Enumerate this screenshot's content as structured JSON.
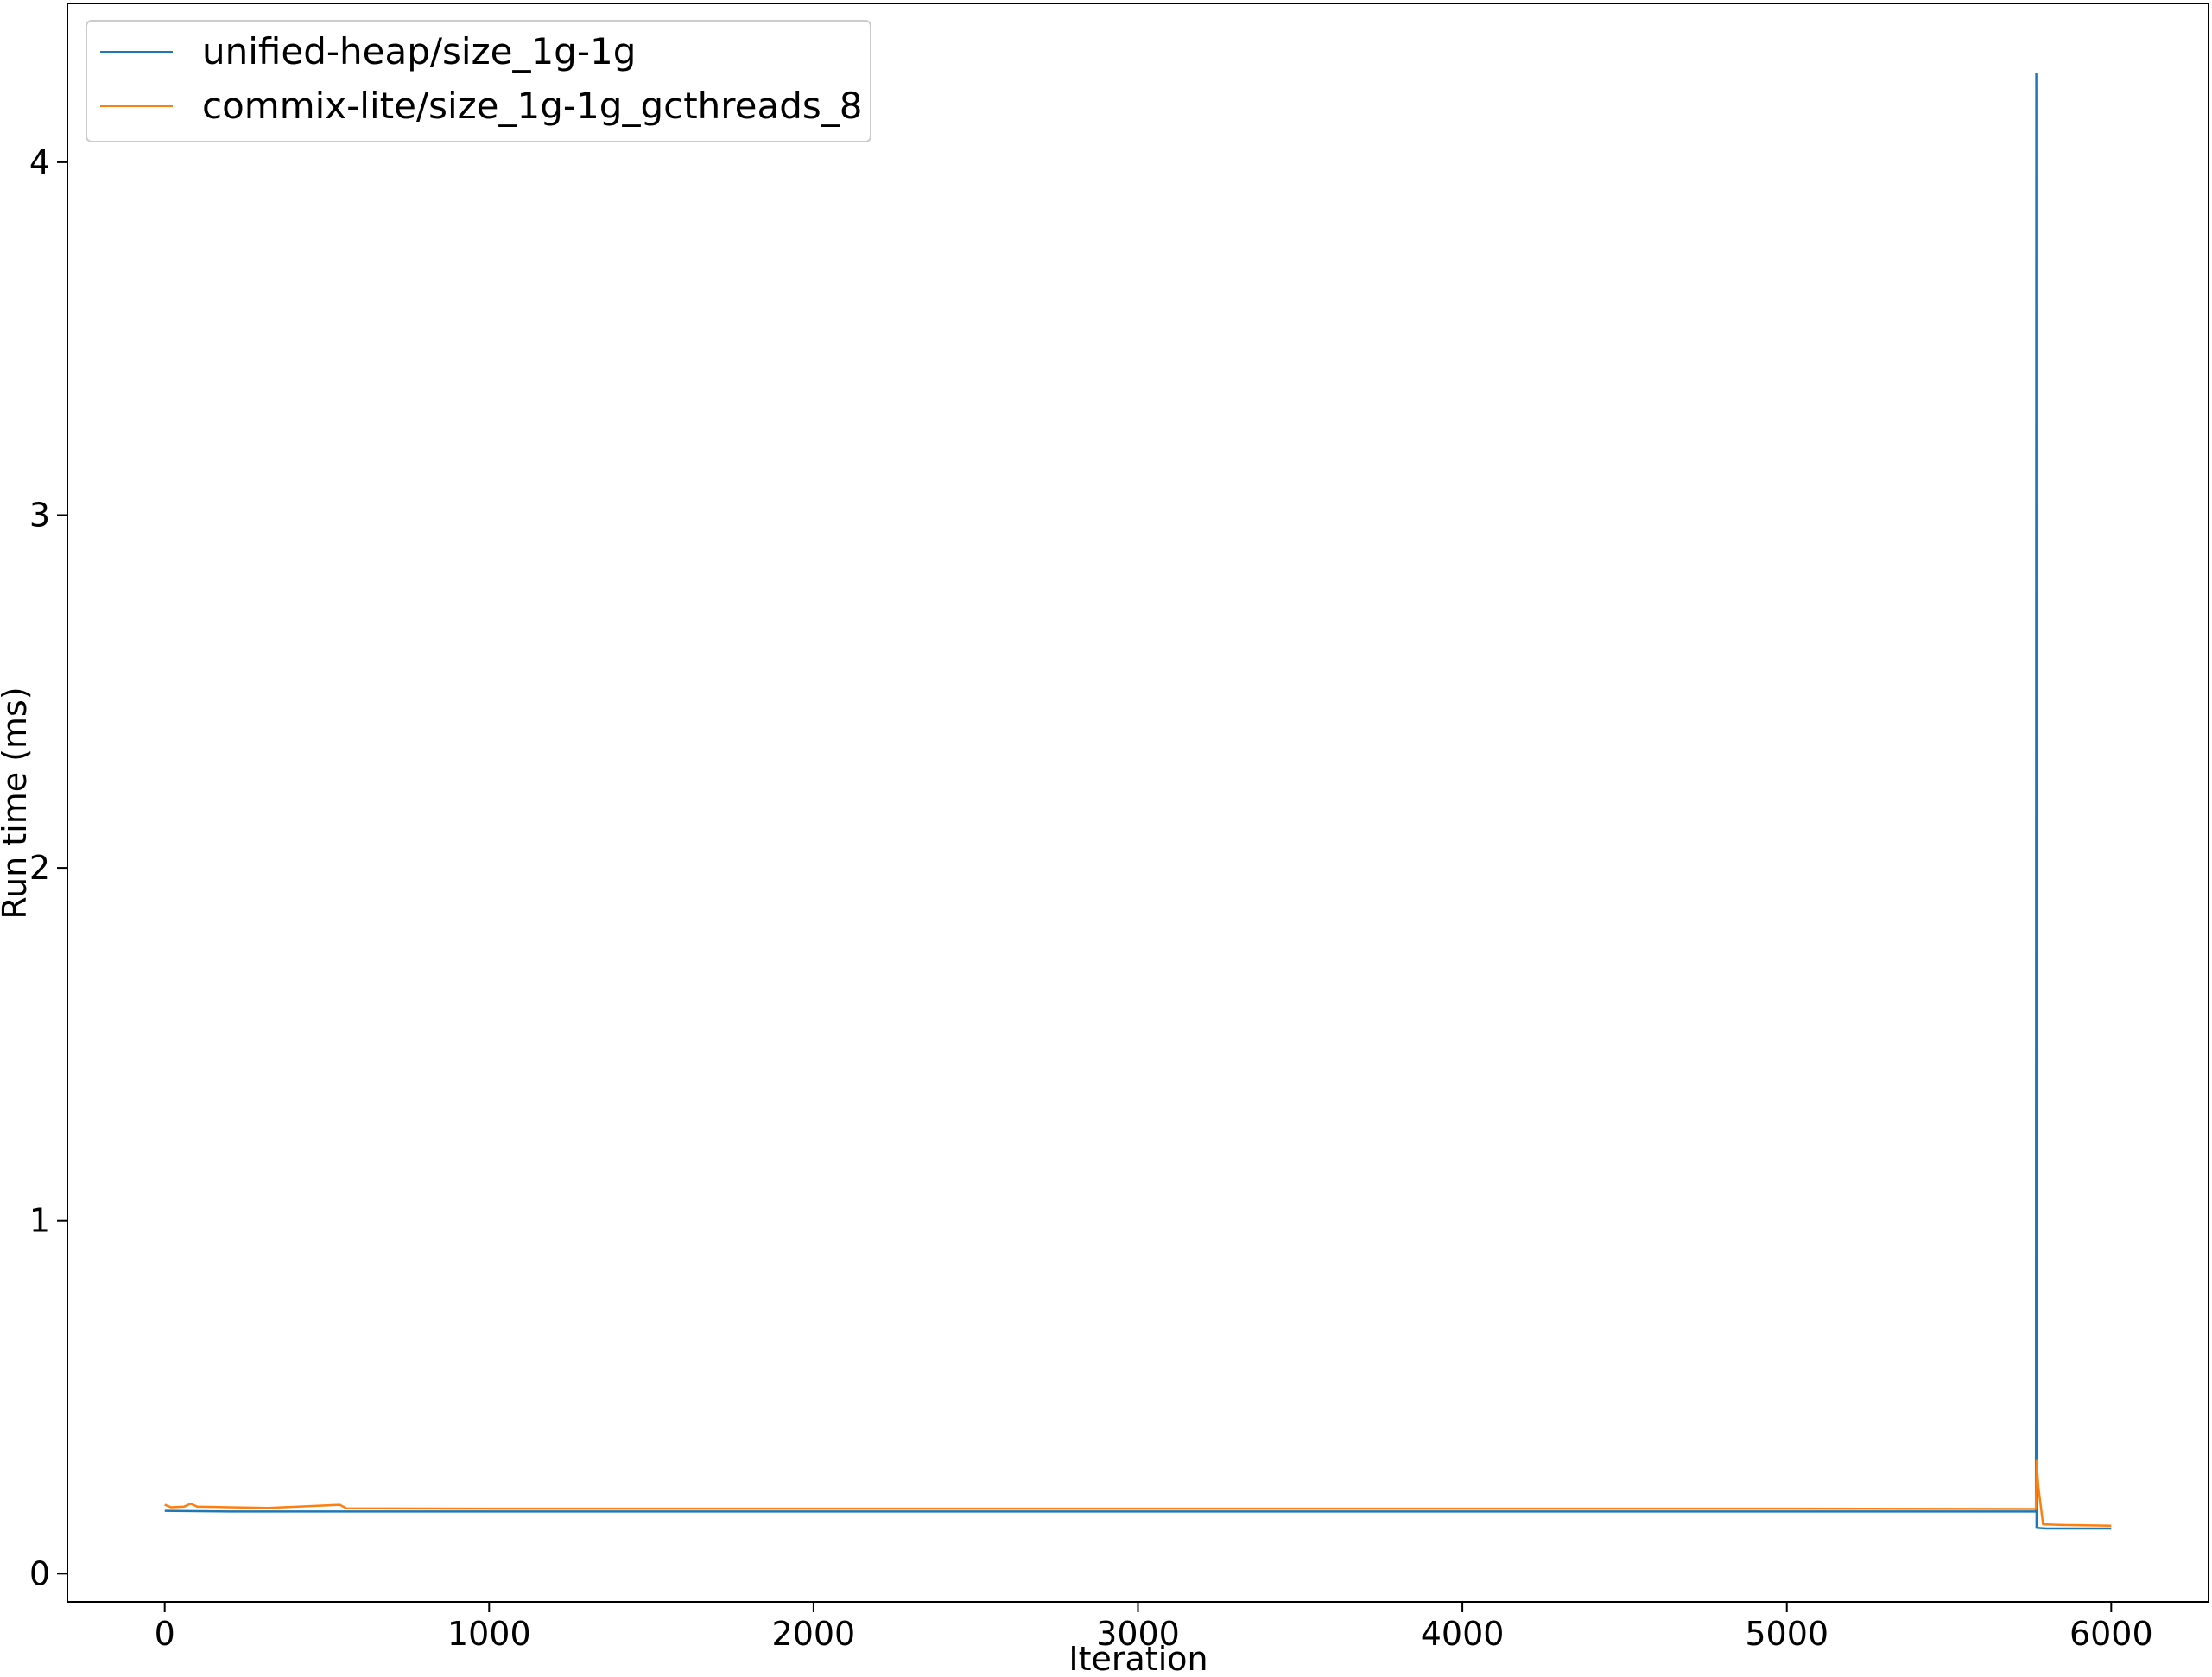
{
  "chart_data": {
    "type": "line",
    "title": "",
    "xlabel": "Iteration",
    "ylabel": "Run time (ms)",
    "xlim": [
      -300,
      6300
    ],
    "ylim": [
      -0.08,
      4.45
    ],
    "xticks": [
      0,
      1000,
      2000,
      3000,
      4000,
      5000,
      6000
    ],
    "xtick_labels": [
      "0",
      "1000",
      "2000",
      "3000",
      "4000",
      "5000",
      "6000"
    ],
    "yticks": [
      0,
      1,
      2,
      3,
      4
    ],
    "ytick_labels": [
      "0",
      "1",
      "2",
      "3",
      "4"
    ],
    "grid": false,
    "legend_position": "upper-left",
    "series": [
      {
        "name": "unified-heap/size_1g-1g",
        "color": "#1f77b4",
        "points": [
          [
            0,
            0.178
          ],
          [
            100,
            0.177
          ],
          [
            200,
            0.176
          ],
          [
            400,
            0.176
          ],
          [
            600,
            0.176
          ],
          [
            1000,
            0.176
          ],
          [
            2000,
            0.176
          ],
          [
            3000,
            0.176
          ],
          [
            4000,
            0.176
          ],
          [
            5000,
            0.176
          ],
          [
            5700,
            0.176
          ],
          [
            5768,
            0.176
          ],
          [
            5769,
            4.25
          ],
          [
            5770,
            0.13
          ],
          [
            5800,
            0.128
          ],
          [
            6000,
            0.128
          ]
        ]
      },
      {
        "name": "commix-lite/size_1g-1g_gcthreads_8",
        "color": "#ff7f0e",
        "points": [
          [
            0,
            0.195
          ],
          [
            20,
            0.188
          ],
          [
            60,
            0.19
          ],
          [
            80,
            0.198
          ],
          [
            100,
            0.19
          ],
          [
            200,
            0.188
          ],
          [
            320,
            0.186
          ],
          [
            540,
            0.195
          ],
          [
            560,
            0.185
          ],
          [
            1000,
            0.184
          ],
          [
            2000,
            0.184
          ],
          [
            3000,
            0.184
          ],
          [
            4000,
            0.184
          ],
          [
            5000,
            0.184
          ],
          [
            5768,
            0.183
          ],
          [
            5770,
            0.32
          ],
          [
            5775,
            0.25
          ],
          [
            5790,
            0.14
          ],
          [
            5850,
            0.138
          ],
          [
            6000,
            0.136
          ]
        ]
      }
    ]
  }
}
